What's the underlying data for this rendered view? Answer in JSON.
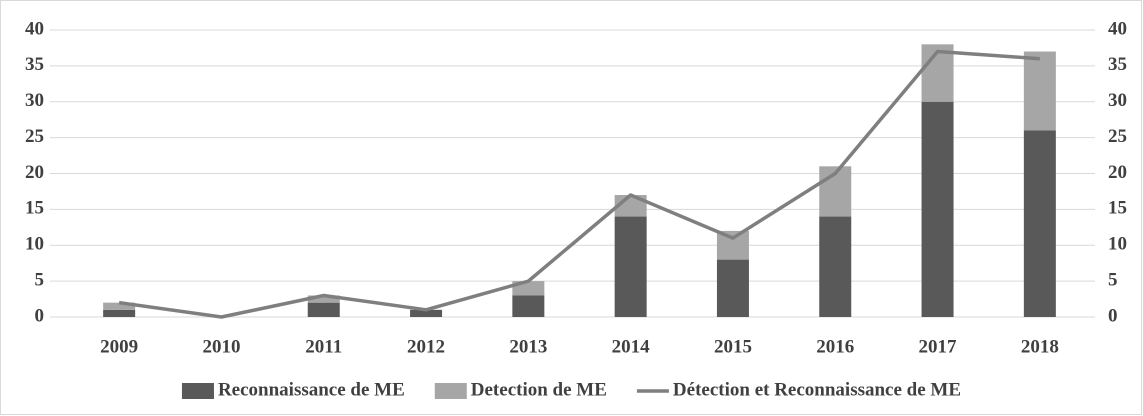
{
  "chart_data": {
    "type": "bar",
    "stacked": true,
    "categories": [
      "2009",
      "2010",
      "2011",
      "2012",
      "2013",
      "2014",
      "2015",
      "2016",
      "2017",
      "2018"
    ],
    "series": [
      {
        "name": "Reconnaissance de ME",
        "type": "bar",
        "color": "#595959",
        "values": [
          1,
          0,
          2,
          1,
          3,
          14,
          8,
          14,
          30,
          26
        ]
      },
      {
        "name": "Detection de ME",
        "type": "bar",
        "color": "#a6a6a6",
        "values": [
          1,
          0,
          1,
          0,
          2,
          3,
          4,
          7,
          8,
          11
        ]
      },
      {
        "name": "Détection et Reconnaissance de ME",
        "type": "line",
        "axis": "y2",
        "color": "#7f7f7f",
        "values": [
          2,
          0,
          3,
          1,
          5,
          17,
          11,
          20,
          37,
          36
        ]
      }
    ],
    "ylim": [
      0,
      40
    ],
    "yticks": [
      0,
      5,
      10,
      15,
      20,
      25,
      30,
      35,
      40
    ],
    "y2lim": [
      0,
      40
    ],
    "y2ticks": [
      0,
      5,
      10,
      15,
      20,
      25,
      30,
      35,
      40
    ],
    "grid": true,
    "legend": "bottom"
  }
}
